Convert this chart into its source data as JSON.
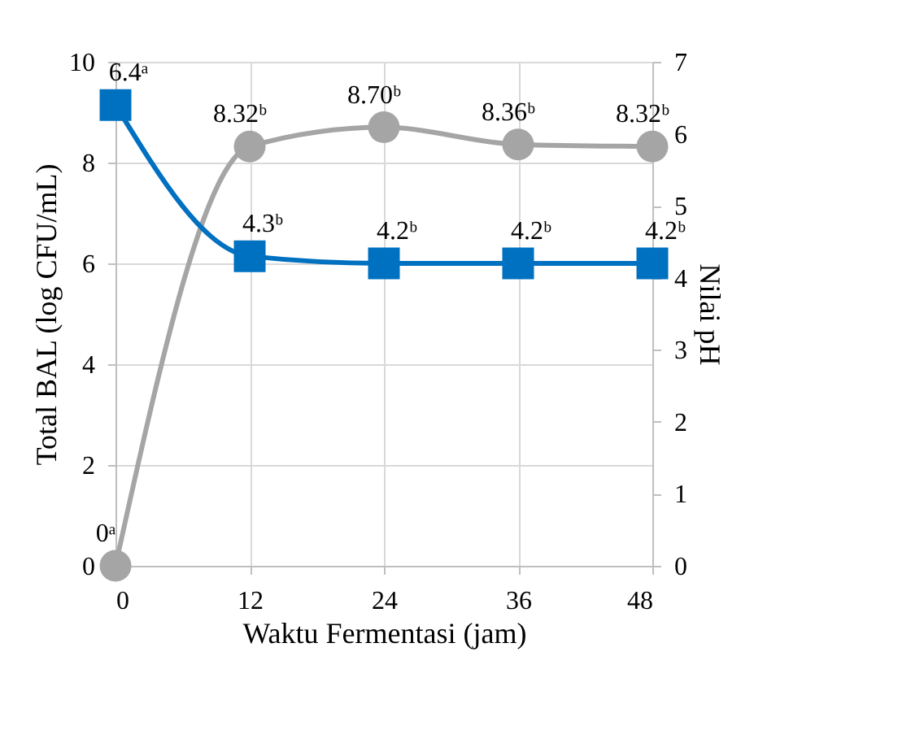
{
  "chart_data": {
    "type": "line",
    "xlabel": "Waktu Fermentasi (jam)",
    "ylabel": "Total BAL (log CFU/mL)",
    "y2label": "Nilai pH",
    "x": [
      0,
      12,
      24,
      36,
      48
    ],
    "series": [
      {
        "color": "#a5a5a5",
        "marker": "circle",
        "values": [
          0,
          8.32,
          8.7,
          8.36,
          8.32
        ],
        "value_labels": [
          "0ᵃ",
          "8.32ᵇ",
          "8.70ᵇ",
          "8.36ᵇ",
          "8.32ᵇ"
        ]
      },
      {
        "color": "#0070c0",
        "marker": "square",
        "axis": "y2",
        "values": [
          6.4,
          4.3,
          4.2,
          4.2,
          4.2
        ],
        "value_labels": [
          "6.4ᵃ",
          "4.3ᵇ",
          "4.2ᵇ",
          "4.2ᵇ",
          "4.2ᵇ"
        ]
      }
    ],
    "xlim": [
      0,
      48
    ],
    "xticks": [
      0,
      12,
      24,
      36,
      48
    ],
    "ylim": [
      0,
      10
    ],
    "yticks": [
      0,
      2,
      4,
      6,
      8,
      10
    ],
    "y2lim": [
      0,
      7
    ],
    "y2ticks": [
      0,
      1,
      2,
      3,
      4,
      5,
      6,
      7
    ],
    "grid": true,
    "line_style": "solid"
  }
}
